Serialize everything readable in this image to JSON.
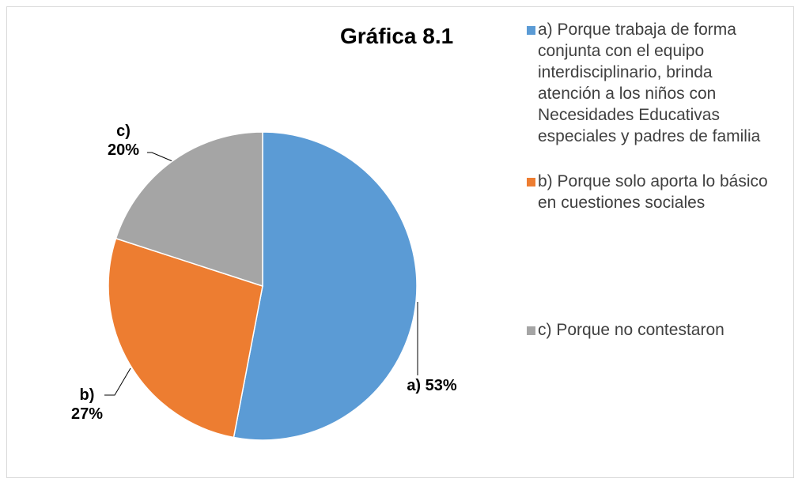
{
  "chart_data": {
    "type": "pie",
    "title": "Gráfica 8.1",
    "categories": [
      "a) Porque trabaja de forma conjunta con el equipo interdisciplinario, brinda atención a los niños con Necesidades Educativas especiales y padres de familia",
      "b) Porque solo aporta lo básico en cuestiones sociales",
      "c) Porque no contestaron"
    ],
    "values": [
      53,
      27,
      20
    ],
    "value_labels": [
      "a) 53%",
      "b) 27%",
      "c) 20%"
    ],
    "colors": [
      "#5b9bd5",
      "#ed7d31",
      "#a5a5a5"
    ],
    "legend": "right"
  }
}
